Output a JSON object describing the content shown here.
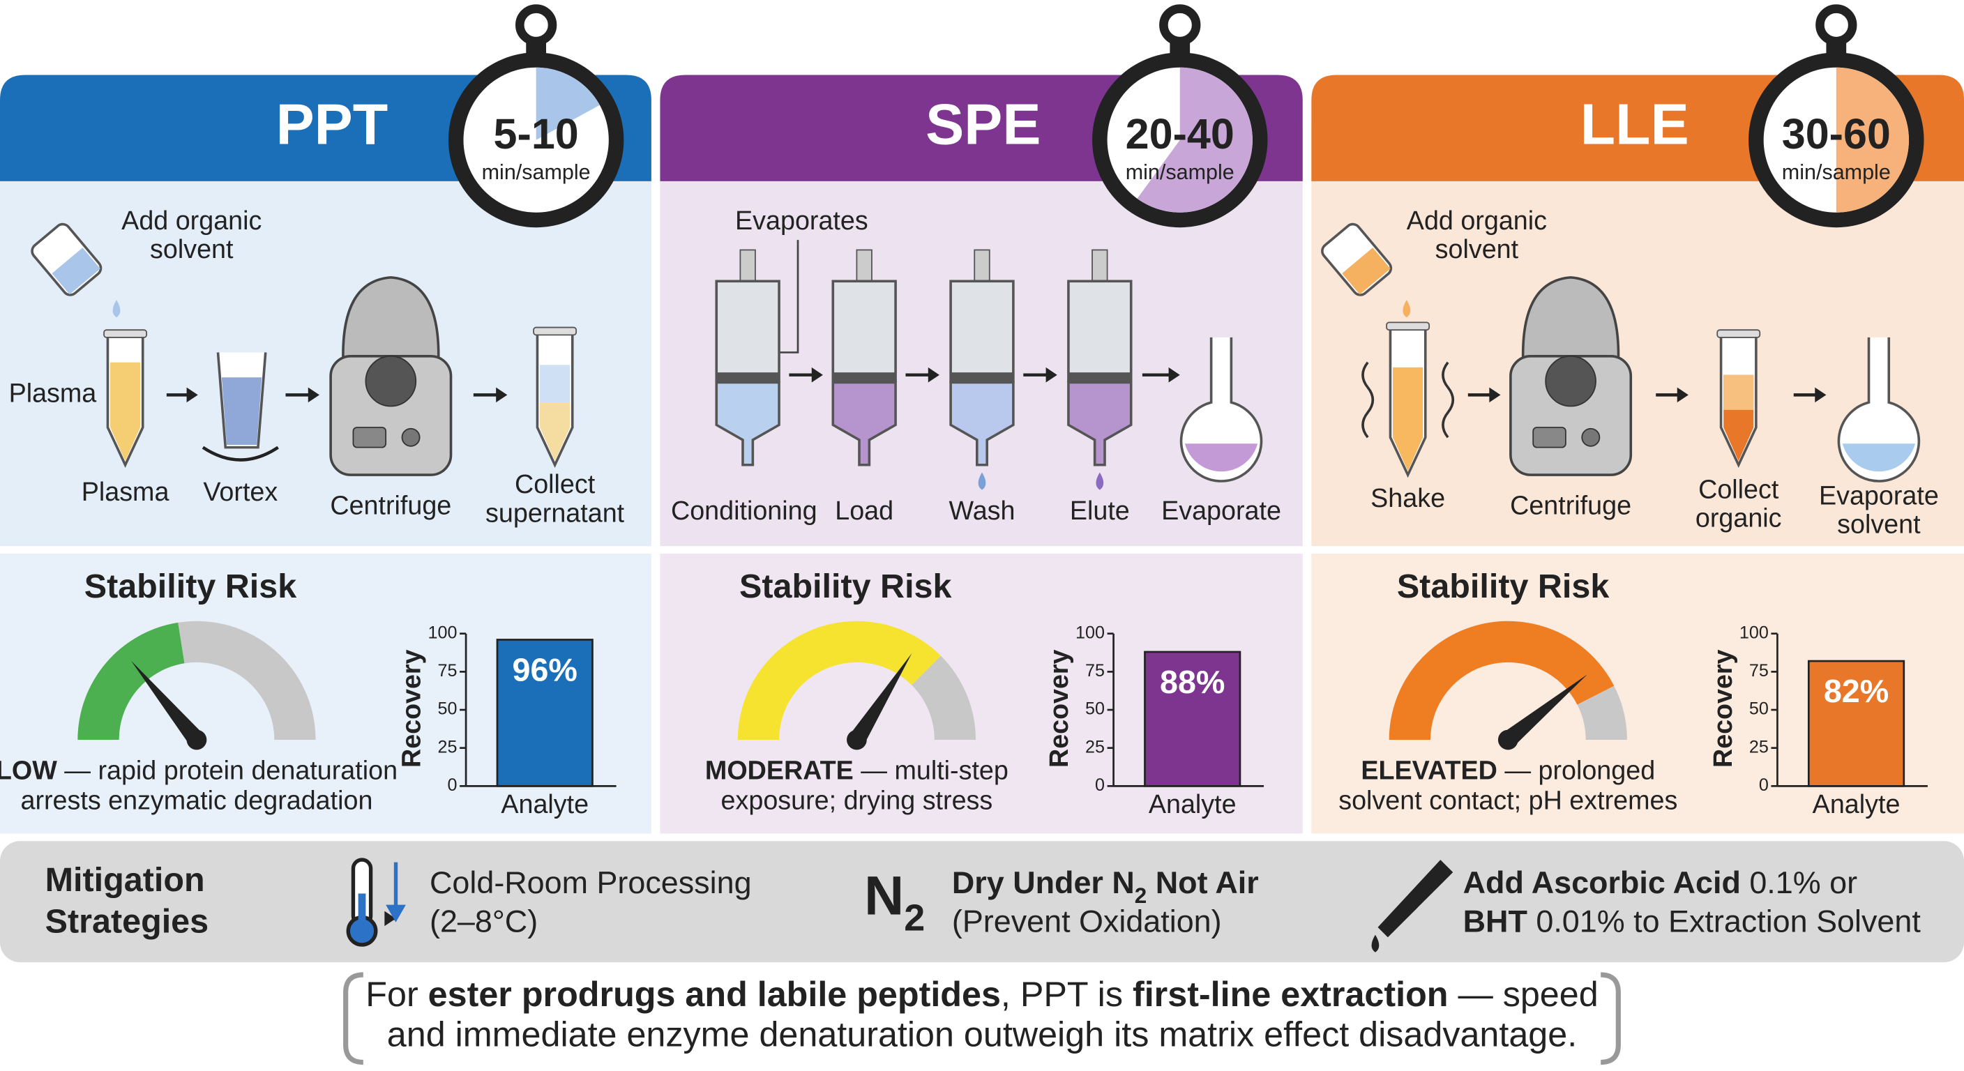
{
  "panels": [
    {
      "title": "PPT",
      "time": "5-10",
      "unit": "min/sample",
      "color": "#1a6fb8",
      "light": "#a9c6ea",
      "bg": "#e3eef9",
      "bg2": "#e8f1fa",
      "note": [
        "Add organic",
        "solvent"
      ],
      "side_label": "Plasma",
      "steps": [
        [
          "Plasma"
        ],
        [
          "Vortex"
        ],
        [
          "Centrifuge"
        ],
        [
          "Collect",
          "supernatant"
        ]
      ],
      "risk_heading": "Stability Risk",
      "risk_level": "LOW",
      "risk_text": [
        " — rapid protein denaturation",
        "arrests enzymatic degradation"
      ],
      "gauge_color": "#4caf50",
      "recovery": {
        "type": "bar",
        "y_label": "Recovery",
        "categories": [
          "Analyte"
        ],
        "values": [
          96
        ],
        "value_labels": [
          "96%"
        ],
        "ylim": [
          0,
          100
        ],
        "yticks": [
          0,
          25,
          50,
          75,
          100
        ]
      }
    },
    {
      "title": "SPE",
      "time": "20-40",
      "unit": "min/sample",
      "color": "#7d3590",
      "light": "#c9a6d8",
      "bg": "#ede2f0",
      "bg2": "#f0e6f2",
      "note": [
        "Evaporates"
      ],
      "steps": [
        [
          "Conditioning"
        ],
        [
          "Load"
        ],
        [
          "Wash"
        ],
        [
          "Elute"
        ],
        [
          "Evaporate"
        ]
      ],
      "risk_heading": "Stability Risk",
      "risk_level": "MODERATE",
      "risk_text": [
        " — multi-step",
        "exposure; drying stress"
      ],
      "gauge_color": "#f5e330",
      "recovery": {
        "type": "bar",
        "y_label": "Recovery",
        "categories": [
          "Analyte"
        ],
        "values": [
          88
        ],
        "value_labels": [
          "88%"
        ],
        "ylim": [
          0,
          100
        ],
        "yticks": [
          0,
          25,
          50,
          75,
          100
        ]
      }
    },
    {
      "title": "LLE",
      "time": "30-60",
      "unit": "min/sample",
      "color": "#e8772a",
      "light": "#f6b27a",
      "bg": "#fbe7d8",
      "bg2": "#fcece0",
      "note": [
        "Add organic",
        "solvent"
      ],
      "steps": [
        [
          "Shake"
        ],
        [
          "Centrifuge"
        ],
        [
          "Collect",
          "organic"
        ],
        [
          "Evaporate",
          "solvent"
        ]
      ],
      "risk_heading": "Stability Risk",
      "risk_level": "ELEVATED",
      "risk_text": [
        " — prolonged",
        "solvent contact; pH extremes"
      ],
      "gauge_color": "#ef7d22",
      "recovery": {
        "type": "bar",
        "y_label": "Recovery",
        "categories": [
          "Analyte"
        ],
        "values": [
          82
        ],
        "value_labels": [
          "82%"
        ],
        "ylim": [
          0,
          100
        ],
        "yticks": [
          0,
          25,
          50,
          75,
          100
        ]
      }
    }
  ],
  "mitigation": {
    "title": [
      "Mitigation",
      "Strategies"
    ],
    "items": [
      {
        "lines": [
          [
            {
              "text": "Cold-Room Processing"
            }
          ],
          [
            {
              "text": "(2–8°C)"
            }
          ]
        ]
      },
      {
        "icon": [
          "N",
          "2"
        ],
        "lines": [
          [
            {
              "text": "Dry Under N",
              "bold": true
            },
            {
              "text": "2",
              "bold": true,
              "sub": true
            },
            {
              "text": " Not Air",
              "bold": true
            }
          ],
          [
            {
              "text": "(Prevent Oxidation)"
            }
          ]
        ]
      },
      {
        "lines": [
          [
            {
              "text": "Add Ascorbic Acid",
              "bold": true
            },
            {
              "text": " 0.1% or"
            }
          ],
          [
            {
              "text": "BHT",
              "bold": true
            },
            {
              "text": " 0.01% to Extraction Solvent"
            }
          ]
        ]
      }
    ]
  },
  "footer": {
    "lines": [
      [
        {
          "text": "For "
        },
        {
          "text": "ester prodrugs and labile peptides",
          "bold": true
        },
        {
          "text": ", PPT is "
        },
        {
          "text": "first-line extraction",
          "bold": true
        },
        {
          "text": " — speed"
        }
      ],
      [
        {
          "text": "and immediate enzyme denaturation outweigh its matrix effect disadvantage."
        }
      ]
    ]
  }
}
